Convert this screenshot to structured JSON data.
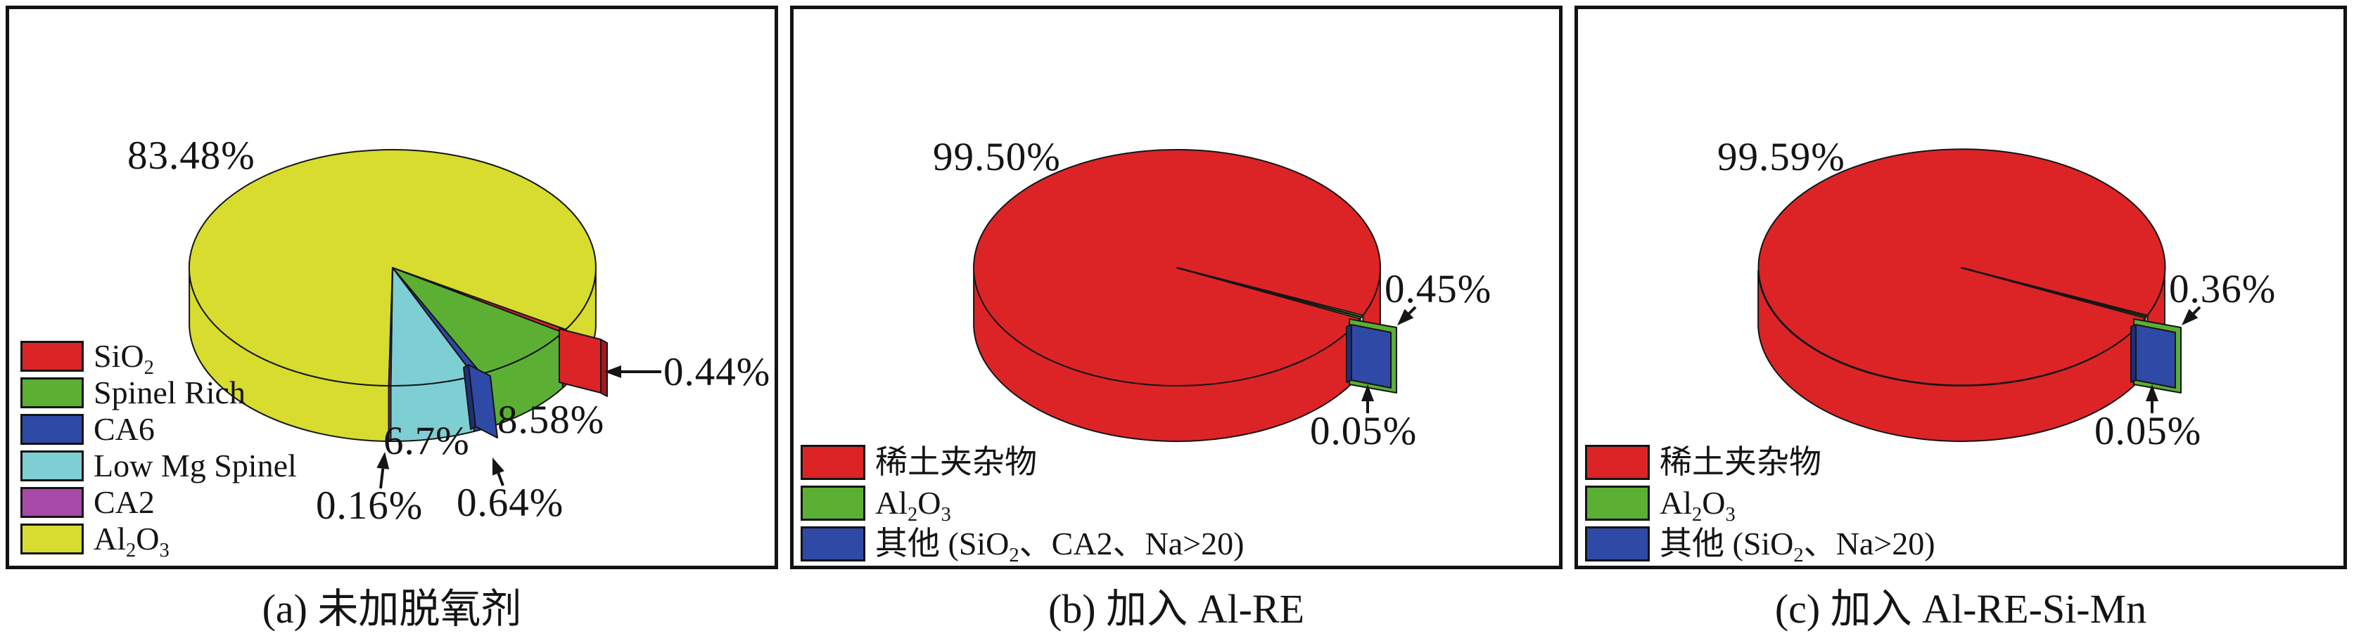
{
  "palette": {
    "red": "#DC2426",
    "dark_red": "#9E1B1D",
    "green": "#5BB033",
    "blue": "#2E4AA6",
    "dark_blue": "#1E2F7A",
    "cyan": "#7ECFD4",
    "purple": "#A74AA8",
    "yellow": "#D7DC2E",
    "outline": "#151515",
    "text": "#141414"
  },
  "figure": {
    "panels": [
      {
        "caption": "(a) 未加脱氧剂",
        "pct": {
          "al2o3": "83.48%",
          "sio2": "0.44%",
          "spinel_rich": "8.58%",
          "low_mg_spinel": "6.7%",
          "ca6": "0.64%",
          "ca2": "0.16%"
        },
        "legend": [
          {
            "label": "SiO[2]",
            "color": "#DC2426"
          },
          {
            "label": "Spinel Rich",
            "color": "#5BB033"
          },
          {
            "label": "CA6",
            "color": "#2E4AA6"
          },
          {
            "label": "Low Mg Spinel",
            "color": "#7ECFD4"
          },
          {
            "label": "CA2",
            "color": "#A74AA8"
          },
          {
            "label": "Al[2]O[3]",
            "color": "#D7DC2E"
          }
        ]
      },
      {
        "caption": "(b) 加入 Al-RE",
        "pct": {
          "main": "99.50%",
          "al2o3": "0.45%",
          "other": "0.05%"
        },
        "legend": [
          {
            "label": "稀土夹杂物",
            "color": "#DC2426"
          },
          {
            "label": "Al[2]O[3]",
            "color": "#5BB033"
          },
          {
            "label": "其他 (SiO[2]、CA2、Na>20)",
            "color": "#2E4AA6"
          }
        ]
      },
      {
        "caption": "(c) 加入 Al-RE-Si-Mn",
        "pct": {
          "main": "99.59%",
          "al2o3": "0.36%",
          "other": "0.05%"
        },
        "legend": [
          {
            "label": "稀土夹杂物",
            "color": "#DC2426"
          },
          {
            "label": "Al[2]O[3]",
            "color": "#5BB033"
          },
          {
            "label": "其他 (SiO[2]、Na>20)",
            "color": "#2E4AA6"
          }
        ]
      }
    ]
  },
  "chart_data": [
    {
      "type": "pie",
      "style": "3d-exploded",
      "title": "(a) 未加脱氧剂",
      "unit": "%",
      "labels": [
        "SiO2",
        "Spinel Rich",
        "CA6",
        "Low Mg Spinel",
        "CA2",
        "Al2O3"
      ],
      "values": [
        0.44,
        8.58,
        0.64,
        6.7,
        0.16,
        83.48
      ],
      "colors": [
        "#DC2426",
        "#5BB033",
        "#2E4AA6",
        "#7ECFD4",
        "#A74AA8",
        "#D7DC2E"
      ],
      "exploded_slices": [
        "SiO2",
        "CA6"
      ],
      "legend_position": "lower-left"
    },
    {
      "type": "pie",
      "style": "3d-exploded",
      "title": "(b) 加入 Al-RE",
      "unit": "%",
      "labels": [
        "稀土夹杂物",
        "Al2O3",
        "其他 (SiO2、CA2、Na>20)"
      ],
      "values": [
        99.5,
        0.45,
        0.05
      ],
      "colors": [
        "#DC2426",
        "#5BB033",
        "#2E4AA6"
      ],
      "exploded_slices": [
        "Al2O3",
        "其他 (SiO2、CA2、Na>20)"
      ],
      "legend_position": "lower-left"
    },
    {
      "type": "pie",
      "style": "3d-exploded",
      "title": "(c) 加入 Al-RE-Si-Mn",
      "unit": "%",
      "labels": [
        "稀土夹杂物",
        "Al2O3",
        "其他 (SiO2、Na>20)"
      ],
      "values": [
        99.59,
        0.36,
        0.05
      ],
      "colors": [
        "#DC2426",
        "#5BB033",
        "#2E4AA6"
      ],
      "exploded_slices": [
        "Al2O3",
        "其他 (SiO2、Na>20)"
      ],
      "legend_position": "lower-left"
    }
  ]
}
